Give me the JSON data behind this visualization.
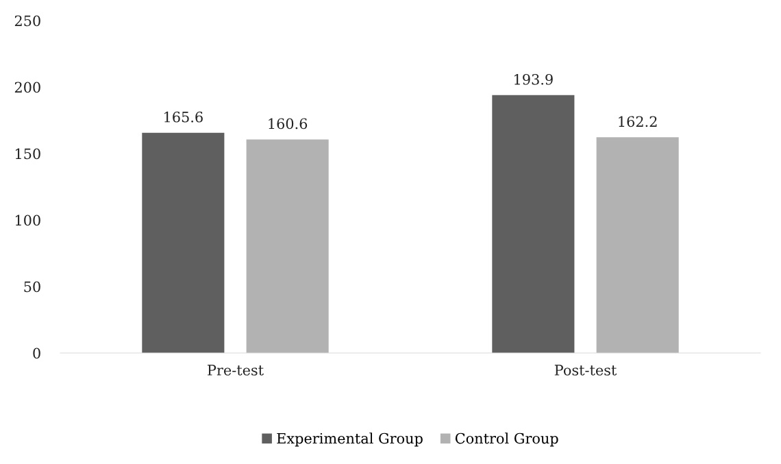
{
  "chart_data": {
    "type": "bar",
    "categories": [
      "Pre-test",
      "Post-test"
    ],
    "series": [
      {
        "name": "Experimental Group",
        "color": "#5f5f5f",
        "values": [
          165.6,
          193.9
        ]
      },
      {
        "name": "Control Group",
        "color": "#b2b2b2",
        "values": [
          160.6,
          162.2
        ]
      }
    ],
    "ylim": [
      0,
      250
    ],
    "yticks": [
      0,
      50,
      100,
      150,
      200,
      250
    ],
    "grid": false,
    "legend": "bottom",
    "data_labels": true
  }
}
